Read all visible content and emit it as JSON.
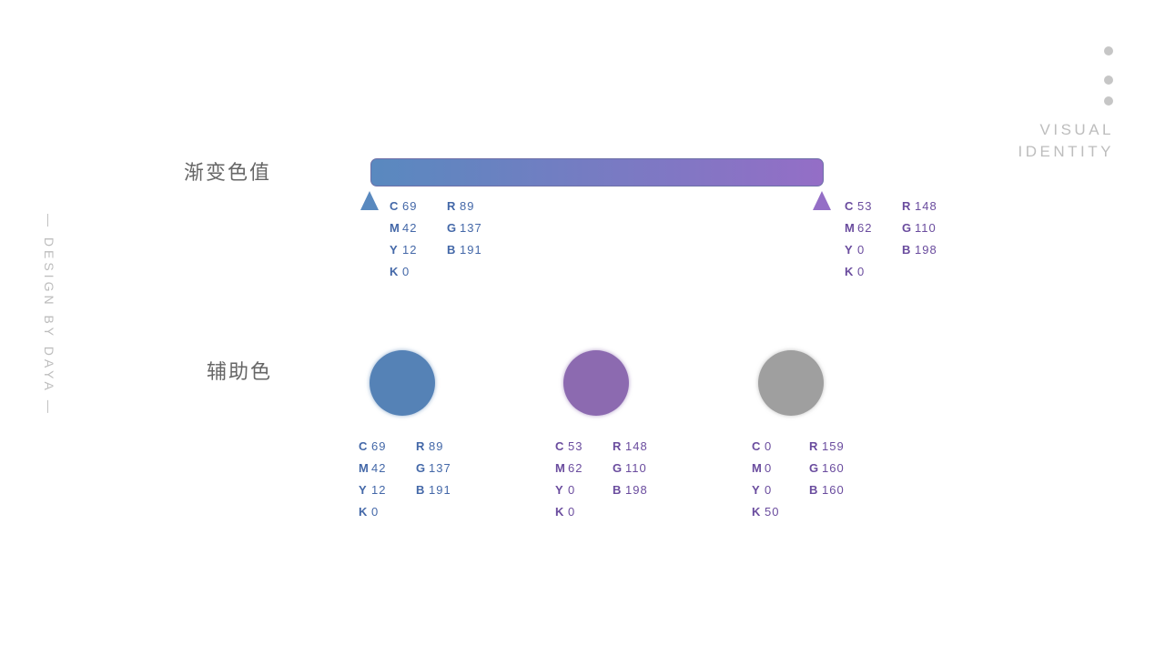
{
  "side_text": "— DESIGN BY DAYA —",
  "corner": {
    "line1": "VISUAL",
    "line2": "IDENTITY",
    "dot_color": "#c6c6c6"
  },
  "gradient_section": {
    "title": "渐变色值",
    "start_color": "#5989bf",
    "end_color": "#946ec6",
    "start": {
      "color": "#4468a8",
      "cmyk": [
        [
          "C",
          "69"
        ],
        [
          "M",
          "42"
        ],
        [
          "Y",
          "12"
        ],
        [
          "K",
          "0"
        ]
      ],
      "rgb": [
        [
          "R",
          "89"
        ],
        [
          "G",
          "137"
        ],
        [
          "B",
          "191"
        ]
      ]
    },
    "end": {
      "color": "#6a4c9e",
      "cmyk": [
        [
          "C",
          "53"
        ],
        [
          "M",
          "62"
        ],
        [
          "Y",
          "0"
        ],
        [
          "K",
          "0"
        ]
      ],
      "rgb": [
        [
          "R",
          "148"
        ],
        [
          "G",
          "110"
        ],
        [
          "B",
          "198"
        ]
      ]
    }
  },
  "auxiliary_section": {
    "title": "辅助色",
    "swatches": [
      {
        "fill": "#5582b6",
        "text_color": "#4468a8",
        "cmyk": [
          [
            "C",
            "69"
          ],
          [
            "M",
            "42"
          ],
          [
            "Y",
            "12"
          ],
          [
            "K",
            "0"
          ]
        ],
        "rgb": [
          [
            "R",
            "89"
          ],
          [
            "G",
            "137"
          ],
          [
            "B",
            "191"
          ]
        ]
      },
      {
        "fill": "#8c6ab0",
        "text_color": "#6a4c9e",
        "cmyk": [
          [
            "C",
            "53"
          ],
          [
            "M",
            "62"
          ],
          [
            "Y",
            "0"
          ],
          [
            "K",
            "0"
          ]
        ],
        "rgb": [
          [
            "R",
            "148"
          ],
          [
            "G",
            "110"
          ],
          [
            "B",
            "198"
          ]
        ]
      },
      {
        "fill": "#9f9f9f",
        "text_color": "#6a4c9e",
        "cmyk": [
          [
            "C",
            "0"
          ],
          [
            "M",
            "0"
          ],
          [
            "Y",
            "0"
          ],
          [
            "K",
            "50"
          ]
        ],
        "rgb": [
          [
            "R",
            "159"
          ],
          [
            "G",
            "160"
          ],
          [
            "B",
            "160"
          ]
        ]
      }
    ]
  }
}
